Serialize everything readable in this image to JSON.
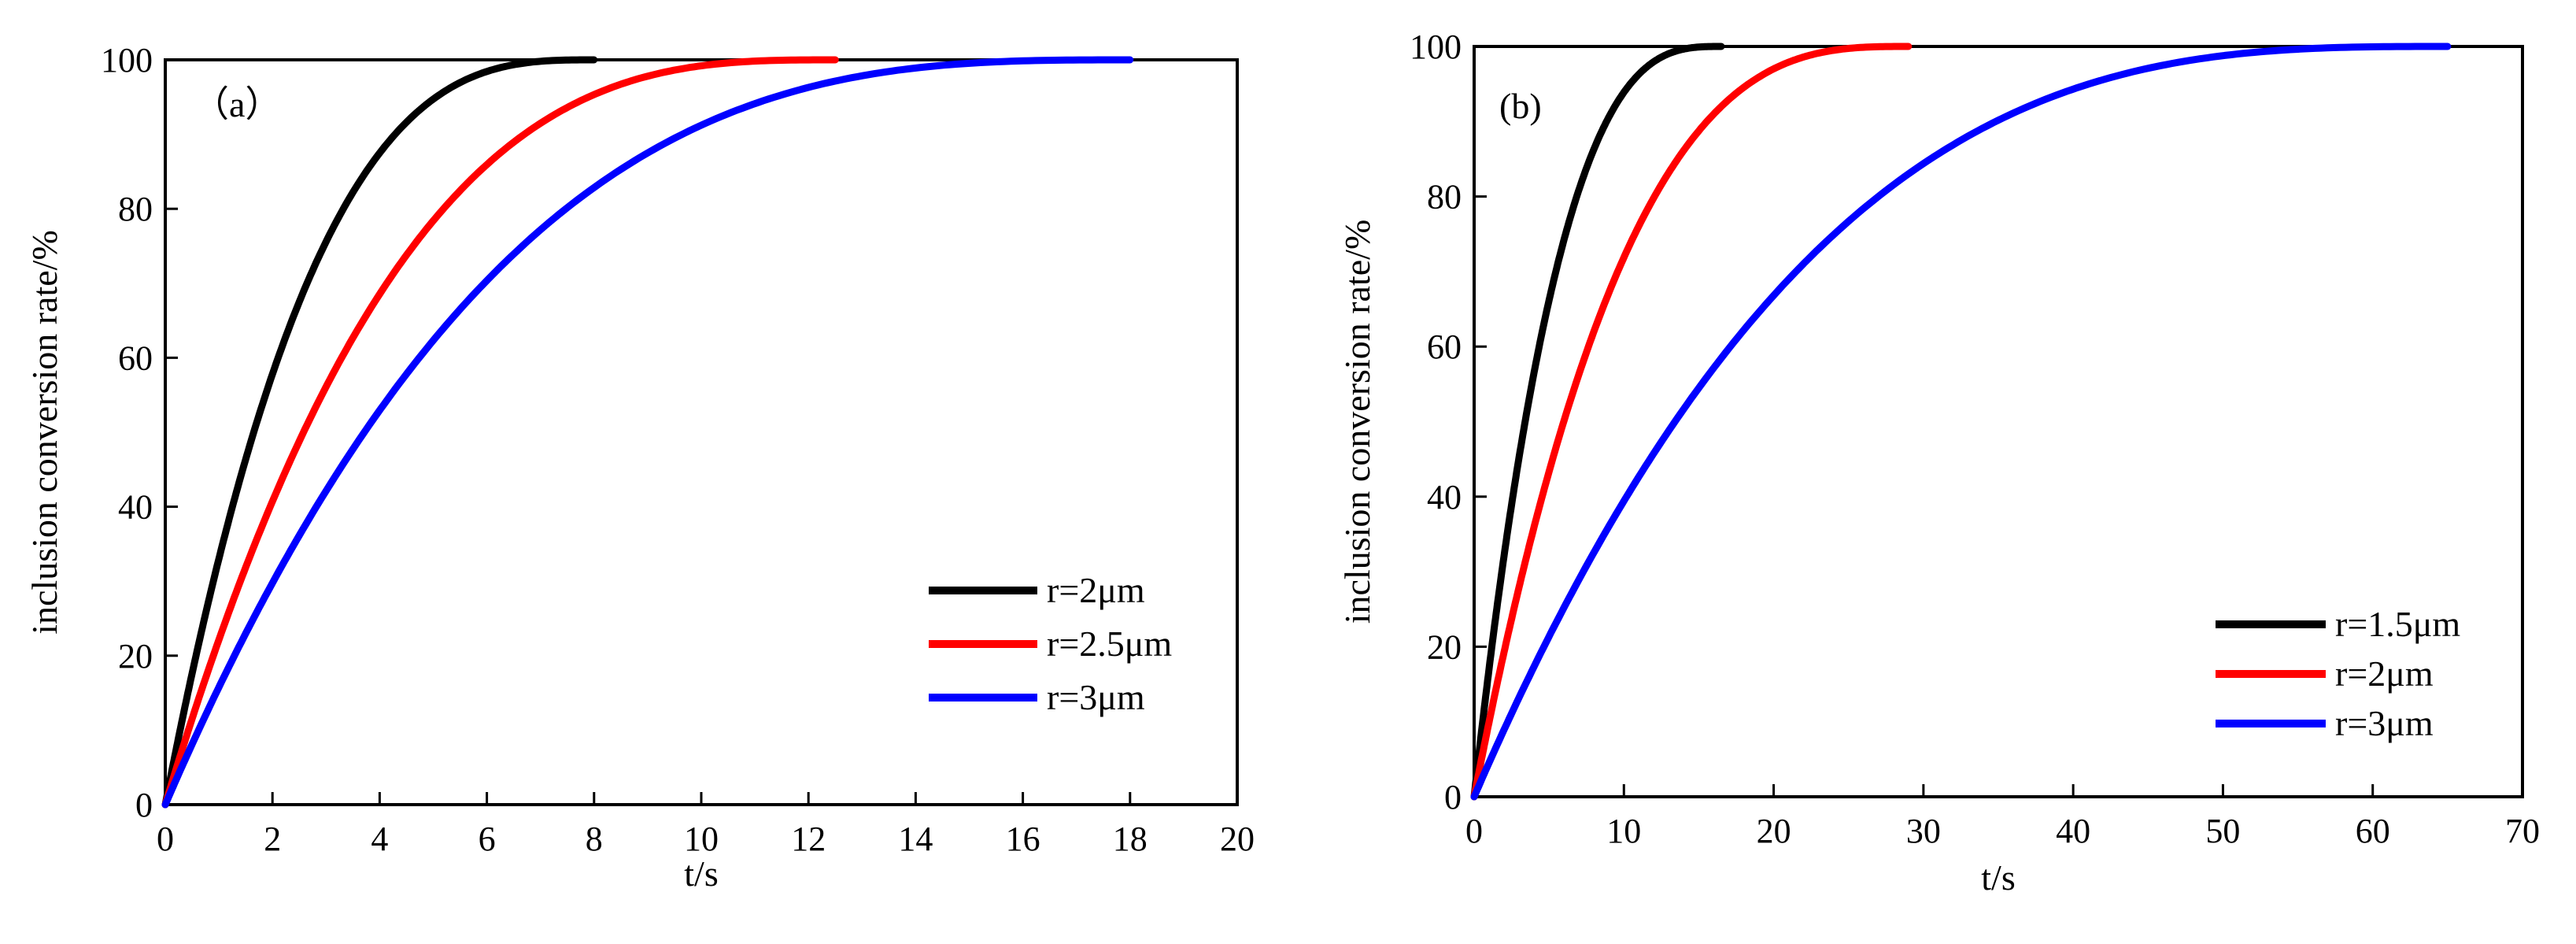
{
  "chart_data": [
    {
      "type": "line",
      "panel_label": "（a）",
      "xlabel": "t/s",
      "ylabel": "inclusion conversion rate/%",
      "xlim": [
        0,
        20
      ],
      "ylim": [
        0,
        100
      ],
      "x_ticks": [
        0,
        2,
        4,
        6,
        8,
        10,
        12,
        14,
        16,
        18,
        20
      ],
      "y_ticks": [
        0,
        20,
        40,
        60,
        80,
        100
      ],
      "x_tick_labels": [
        "0",
        "2",
        "4",
        "6",
        "8",
        "10",
        "12",
        "14",
        "16",
        "18",
        "20"
      ],
      "y_tick_labels": [
        "0",
        "20",
        "40",
        "60",
        "80",
        "100"
      ],
      "legend_position": "lower-right",
      "series": [
        {
          "name": "r=2μm",
          "color": "#000000",
          "t_end": 8.0
        },
        {
          "name": "r=2.5μm",
          "color": "#ff0000",
          "t_end": 12.5
        },
        {
          "name": "r=3μm",
          "color": "#0000ff",
          "t_end": 18.0
        }
      ]
    },
    {
      "type": "line",
      "panel_label": "(b)",
      "xlabel": "t/s",
      "ylabel": "inclusion conversion rate/%",
      "xlim": [
        0,
        70
      ],
      "ylim": [
        0,
        100
      ],
      "x_ticks": [
        0,
        10,
        20,
        30,
        40,
        50,
        60,
        70
      ],
      "y_ticks": [
        0,
        20,
        40,
        60,
        80,
        100
      ],
      "x_tick_labels": [
        "0",
        "10",
        "20",
        "30",
        "40",
        "50",
        "60",
        "70"
      ],
      "y_tick_labels": [
        "0",
        "20",
        "40",
        "60",
        "80",
        "100"
      ],
      "legend_position": "lower-right",
      "series": [
        {
          "name": "r=1.5μm",
          "color": "#000000",
          "t_end": 16.5
        },
        {
          "name": "r=2μm",
          "color": "#ff0000",
          "t_end": 29.0
        },
        {
          "name": "r=3μm",
          "color": "#0000ff",
          "t_end": 65.0
        }
      ]
    }
  ]
}
